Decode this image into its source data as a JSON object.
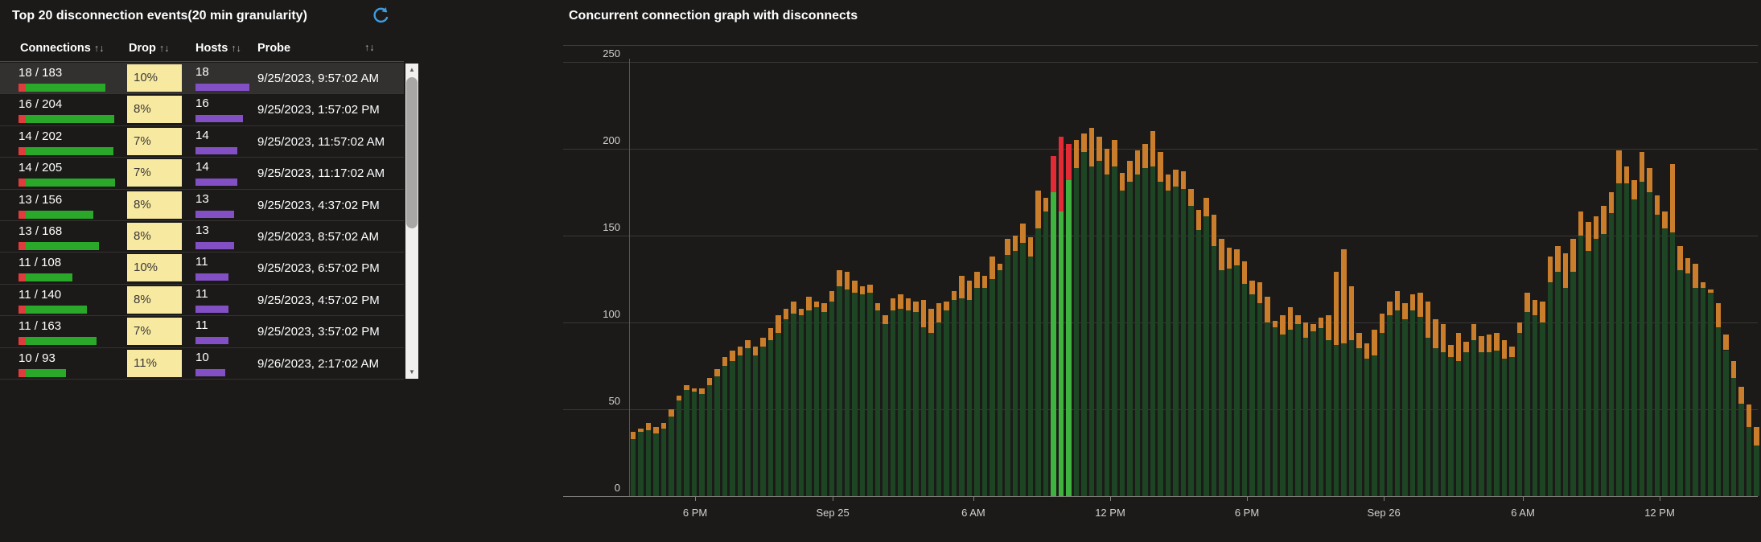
{
  "colors": {
    "background": "#1b1a19",
    "selected_row": "#32312f",
    "drop_badge_bg": "#f8e9a1",
    "drop_badge_text": "#3a3938",
    "hosts_bar": "#8250c4",
    "connections_bar_green": "#2aa82a",
    "connections_bar_red": "#e13c3c",
    "chart_bar_body": "#1d4423",
    "chart_bar_cap": "#ca7d2b",
    "chart_bar_highlight_body": "#3eb43e",
    "chart_bar_highlight_cap": "#e32b35",
    "refresh_icon_blue": "#3f9bdf"
  },
  "table_panel": {
    "title": "Top 20 disconnection events(20 min granularity)",
    "sort_glyph": "↑↓",
    "columns": [
      {
        "label": "Connections"
      },
      {
        "label": "Drop"
      },
      {
        "label": "Hosts"
      },
      {
        "label": "Probe"
      }
    ],
    "rows": [
      {
        "connections": "18 / 183",
        "conn_total": 183,
        "drop": "10%",
        "hosts": 18,
        "probe": "9/25/2023, 9:57:02 AM",
        "selected": true
      },
      {
        "connections": "16 / 204",
        "conn_total": 204,
        "drop": "8%",
        "hosts": 16,
        "probe": "9/25/2023, 1:57:02 PM",
        "selected": false
      },
      {
        "connections": "14 / 202",
        "conn_total": 202,
        "drop": "7%",
        "hosts": 14,
        "probe": "9/25/2023, 11:57:02 AM",
        "selected": false
      },
      {
        "connections": "14 / 205",
        "conn_total": 205,
        "drop": "7%",
        "hosts": 14,
        "probe": "9/25/2023, 11:17:02 AM",
        "selected": false
      },
      {
        "connections": "13 / 156",
        "conn_total": 156,
        "drop": "8%",
        "hosts": 13,
        "probe": "9/25/2023, 4:37:02 PM",
        "selected": false
      },
      {
        "connections": "13 / 168",
        "conn_total": 168,
        "drop": "8%",
        "hosts": 13,
        "probe": "9/25/2023, 8:57:02 AM",
        "selected": false
      },
      {
        "connections": "11 / 108",
        "conn_total": 108,
        "drop": "10%",
        "hosts": 11,
        "probe": "9/25/2023, 6:57:02 PM",
        "selected": false
      },
      {
        "connections": "11 / 140",
        "conn_total": 140,
        "drop": "8%",
        "hosts": 11,
        "probe": "9/25/2023, 4:57:02 PM",
        "selected": false
      },
      {
        "connections": "11 / 163",
        "conn_total": 163,
        "drop": "7%",
        "hosts": 11,
        "probe": "9/25/2023, 3:57:02 PM",
        "selected": false
      },
      {
        "connections": "10 / 93",
        "conn_total": 93,
        "drop": "11%",
        "hosts": 10,
        "probe": "9/26/2023, 2:17:02 AM",
        "selected": false
      }
    ]
  },
  "chart_panel": {
    "title": "Concurrent connection graph with disconnects",
    "chart_data": {
      "type": "bar",
      "title": "Concurrent connection graph with disconnects",
      "granularity": "20 min",
      "ylim": [
        0,
        250
      ],
      "y_ticks": [
        0,
        50,
        100,
        150,
        200,
        250
      ],
      "x_ticks": [
        {
          "label": "6 PM",
          "index": 8.3
        },
        {
          "label": "Sep 25",
          "index": 26.3
        },
        {
          "label": "6 AM",
          "index": 44.7
        },
        {
          "label": "12 PM",
          "index": 62.6
        },
        {
          "label": "6 PM",
          "index": 80.5
        },
        {
          "label": "Sep 26",
          "index": 98.4
        },
        {
          "label": "6 AM",
          "index": 116.6
        },
        {
          "label": "12 PM",
          "index": 134.5
        }
      ],
      "series": [
        {
          "name": "connections",
          "color": "#1d4423"
        },
        {
          "name": "disconnects",
          "color": "#ca7d2b"
        }
      ],
      "bars": [
        [
          37,
          33
        ],
        [
          39,
          37
        ],
        [
          42,
          38
        ],
        [
          40,
          36
        ],
        [
          42,
          39
        ],
        [
          50,
          46
        ],
        [
          58,
          55
        ],
        [
          64,
          61
        ],
        [
          62,
          60
        ],
        [
          62,
          59
        ],
        [
          68,
          64
        ],
        [
          73,
          69
        ],
        [
          80,
          75
        ],
        [
          84,
          78
        ],
        [
          86,
          81
        ],
        [
          90,
          85
        ],
        [
          86,
          81
        ],
        [
          91,
          86
        ],
        [
          97,
          90
        ],
        [
          104,
          94
        ],
        [
          108,
          102
        ],
        [
          112,
          105
        ],
        [
          108,
          104
        ],
        [
          115,
          107
        ],
        [
          112,
          109
        ],
        [
          111,
          106
        ],
        [
          118,
          112
        ],
        [
          130,
          121
        ],
        [
          129,
          119
        ],
        [
          124,
          117
        ],
        [
          121,
          116
        ],
        [
          122,
          117
        ],
        [
          111,
          107
        ],
        [
          104,
          99
        ],
        [
          114,
          107
        ],
        [
          116,
          108
        ],
        [
          114,
          107
        ],
        [
          112,
          106
        ],
        [
          113,
          97
        ],
        [
          108,
          94
        ],
        [
          111,
          100
        ],
        [
          112,
          107
        ],
        [
          118,
          113
        ],
        [
          127,
          114
        ],
        [
          124,
          113
        ],
        [
          129,
          120
        ],
        [
          127,
          120
        ],
        [
          138,
          125
        ],
        [
          134,
          130
        ],
        [
          148,
          139
        ],
        [
          150,
          141
        ],
        [
          157,
          146
        ],
        [
          149,
          138
        ],
        [
          176,
          154
        ],
        [
          172,
          164
        ],
        [
          196,
          175
        ],
        [
          207,
          164
        ],
        [
          203,
          182
        ],
        [
          205,
          189
        ],
        [
          209,
          198
        ],
        [
          212,
          190
        ],
        [
          207,
          193
        ],
        [
          200,
          185
        ],
        [
          205,
          190
        ],
        [
          186,
          176
        ],
        [
          193,
          181
        ],
        [
          199,
          185
        ],
        [
          203,
          189
        ],
        [
          210,
          190
        ],
        [
          198,
          181
        ],
        [
          185,
          176
        ],
        [
          188,
          178
        ],
        [
          187,
          177
        ],
        [
          177,
          167
        ],
        [
          165,
          153
        ],
        [
          172,
          161
        ],
        [
          162,
          144
        ],
        [
          148,
          130
        ],
        [
          143,
          131
        ],
        [
          142,
          133
        ],
        [
          135,
          122
        ],
        [
          124,
          116
        ],
        [
          123,
          111
        ],
        [
          115,
          100
        ],
        [
          101,
          97
        ],
        [
          104,
          93
        ],
        [
          109,
          96
        ],
        [
          104,
          99
        ],
        [
          100,
          91
        ],
        [
          99,
          95
        ],
        [
          103,
          97
        ],
        [
          104,
          90
        ],
        [
          129,
          87
        ],
        [
          142,
          88
        ],
        [
          121,
          90
        ],
        [
          94,
          85
        ],
        [
          88,
          79
        ],
        [
          96,
          81
        ],
        [
          105,
          94
        ],
        [
          112,
          104
        ],
        [
          118,
          107
        ],
        [
          111,
          102
        ],
        [
          116,
          107
        ],
        [
          117,
          103
        ],
        [
          112,
          91
        ],
        [
          102,
          85
        ],
        [
          99,
          83
        ],
        [
          87,
          80
        ],
        [
          94,
          78
        ],
        [
          89,
          83
        ],
        [
          99,
          90
        ],
        [
          92,
          83
        ],
        [
          93,
          83
        ],
        [
          94,
          84
        ],
        [
          90,
          79
        ],
        [
          86,
          80
        ],
        [
          100,
          94
        ],
        [
          117,
          106
        ],
        [
          113,
          104
        ],
        [
          112,
          100
        ],
        [
          138,
          123
        ],
        [
          144,
          129
        ],
        [
          140,
          120
        ],
        [
          148,
          129
        ],
        [
          164,
          150
        ],
        [
          158,
          141
        ],
        [
          161,
          148
        ],
        [
          167,
          151
        ],
        [
          175,
          163
        ],
        [
          199,
          180
        ],
        [
          190,
          180
        ],
        [
          182,
          171
        ],
        [
          198,
          181
        ],
        [
          189,
          175
        ],
        [
          173,
          162
        ],
        [
          164,
          154
        ],
        [
          191,
          152
        ],
        [
          144,
          130
        ],
        [
          137,
          128
        ],
        [
          134,
          120
        ],
        [
          123,
          120
        ],
        [
          119,
          117
        ],
        [
          111,
          97
        ],
        [
          93,
          84
        ],
        [
          78,
          68
        ],
        [
          63,
          53
        ],
        [
          53,
          40
        ],
        [
          40,
          29
        ]
      ],
      "highlighted_indices": [
        55,
        56,
        57
      ]
    }
  }
}
